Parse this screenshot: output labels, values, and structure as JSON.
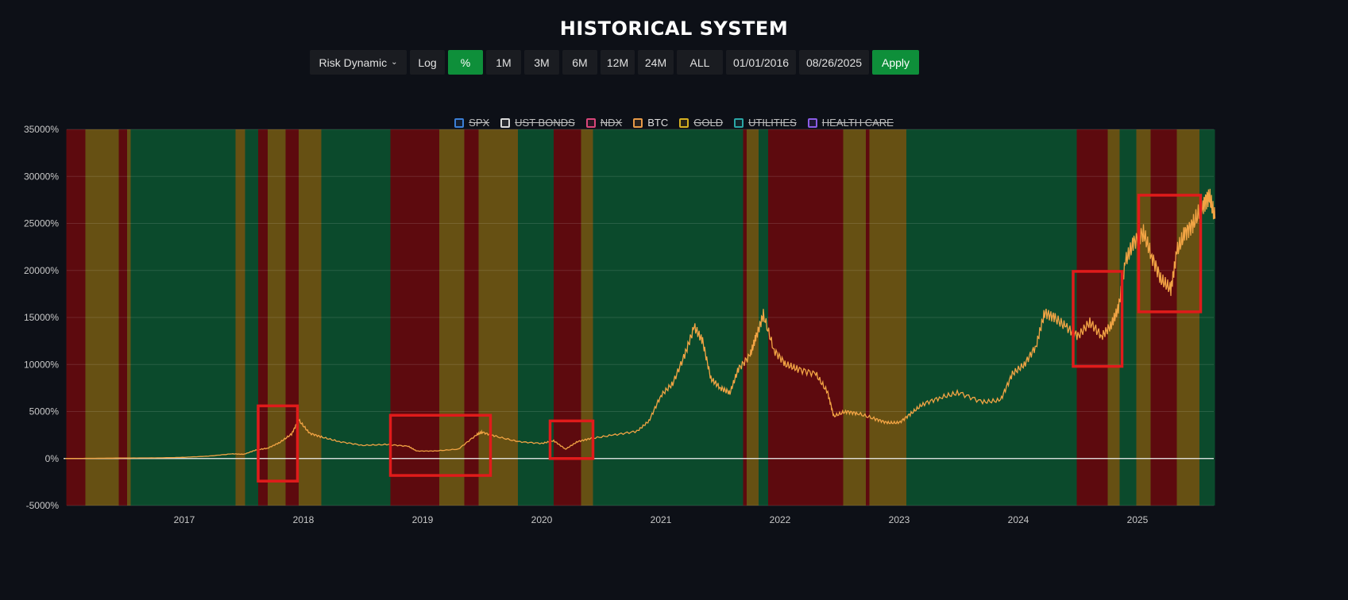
{
  "title": "HISTORICAL SYSTEM",
  "toolbar": {
    "dropdown": "Risk Dynamic",
    "buttons": [
      "Log",
      "%",
      "1M",
      "3M",
      "6M",
      "12M",
      "24M",
      "ALL"
    ],
    "active_button": "%",
    "start_date": "01/01/2016",
    "end_date": "08/26/2025",
    "apply": "Apply"
  },
  "colors": {
    "green": "#0b4a2c",
    "yellow": "#665013",
    "red": "#5d0a0e",
    "line": "#f2a444",
    "box": "#e01b1b"
  },
  "chart_data": {
    "type": "line",
    "title": "HISTORICAL SYSTEM",
    "xlabel": "",
    "ylabel": "",
    "x_range": [
      2016.0,
      2025.65
    ],
    "ylim": [
      -5000,
      35000
    ],
    "yticks": [
      -5000,
      0,
      5000,
      10000,
      15000,
      20000,
      25000,
      30000,
      35000
    ],
    "ytick_labels": [
      "-5000%",
      "0%",
      "5000%",
      "10000%",
      "15000%",
      "20000%",
      "25000%",
      "30000%",
      "35000%"
    ],
    "xticks": [
      2017,
      2018,
      2019,
      2020,
      2021,
      2022,
      2023,
      2024,
      2025
    ],
    "xtick_labels": [
      "2017",
      "2018",
      "2019",
      "2020",
      "2021",
      "2022",
      "2023",
      "2024",
      "2025"
    ],
    "grid": true,
    "legend_position": "top-center",
    "legend": [
      {
        "name": "SPX",
        "color": "#3b7fd6",
        "visible": false
      },
      {
        "name": "UST BONDS",
        "color": "#d8d8d8",
        "visible": false
      },
      {
        "name": "NDX",
        "color": "#d9467a",
        "visible": false
      },
      {
        "name": "BTC",
        "color": "#e89a48",
        "visible": true
      },
      {
        "name": "GOLD",
        "color": "#d6b021",
        "visible": false
      },
      {
        "name": "UTILITIES",
        "color": "#2aa6a6",
        "visible": false
      },
      {
        "name": "HEALTH CARE",
        "color": "#8a5ce6",
        "visible": false
      }
    ],
    "series": [
      {
        "name": "BTC",
        "x": [
          2016.0,
          2016.2,
          2016.5,
          2016.8,
          2017.0,
          2017.2,
          2017.4,
          2017.5,
          2017.6,
          2017.7,
          2017.8,
          2017.9,
          2017.96,
          2018.05,
          2018.15,
          2018.3,
          2018.5,
          2018.7,
          2018.88,
          2018.95,
          2019.1,
          2019.3,
          2019.45,
          2019.5,
          2019.6,
          2019.8,
          2020.0,
          2020.1,
          2020.2,
          2020.3,
          2020.4,
          2020.6,
          2020.8,
          2020.9,
          2021.0,
          2021.1,
          2021.2,
          2021.28,
          2021.35,
          2021.42,
          2021.5,
          2021.58,
          2021.65,
          2021.75,
          2021.8,
          2021.86,
          2021.95,
          2022.05,
          2022.15,
          2022.3,
          2022.4,
          2022.45,
          2022.55,
          2022.65,
          2022.8,
          2022.9,
          2023.0,
          2023.1,
          2023.2,
          2023.35,
          2023.5,
          2023.7,
          2023.85,
          2023.95,
          2024.05,
          2024.15,
          2024.22,
          2024.3,
          2024.4,
          2024.5,
          2024.6,
          2024.7,
          2024.78,
          2024.84,
          2024.9,
          2024.97,
          2025.05,
          2025.12,
          2025.2,
          2025.28,
          2025.33,
          2025.4,
          2025.47,
          2025.55,
          2025.6,
          2025.65
        ],
        "values": [
          0,
          20,
          55,
          70,
          130,
          250,
          500,
          450,
          900,
          1100,
          1700,
          2600,
          4100,
          2700,
          2300,
          1800,
          1400,
          1500,
          1300,
          800,
          800,
          1000,
          2500,
          2800,
          2400,
          1800,
          1600,
          1900,
          1000,
          1800,
          2100,
          2500,
          2900,
          4000,
          6700,
          8000,
          11000,
          14000,
          12500,
          8500,
          7500,
          7000,
          9500,
          11000,
          13000,
          15300,
          11500,
          10000,
          9500,
          9000,
          7000,
          4500,
          5000,
          4800,
          4200,
          3800,
          3800,
          4800,
          5800,
          6500,
          7000,
          6000,
          6200,
          9000,
          10000,
          12000,
          15500,
          15000,
          14000,
          13000,
          14500,
          13000,
          14200,
          16000,
          21000,
          23000,
          24000,
          21500,
          19000,
          18000,
          22000,
          24000,
          25000,
          27000,
          28000,
          25500
        ]
      }
    ],
    "regime_bands": [
      {
        "from": 2016.01,
        "to": 2016.17,
        "regime": "red"
      },
      {
        "from": 2016.17,
        "to": 2016.45,
        "regime": "yellow"
      },
      {
        "from": 2016.45,
        "to": 2016.52,
        "regime": "red"
      },
      {
        "from": 2016.52,
        "to": 2016.55,
        "regime": "yellow"
      },
      {
        "from": 2016.55,
        "to": 2017.43,
        "regime": "green"
      },
      {
        "from": 2017.43,
        "to": 2017.51,
        "regime": "yellow"
      },
      {
        "from": 2017.51,
        "to": 2017.62,
        "regime": "green"
      },
      {
        "from": 2017.62,
        "to": 2017.7,
        "regime": "red"
      },
      {
        "from": 2017.7,
        "to": 2017.85,
        "regime": "yellow"
      },
      {
        "from": 2017.85,
        "to": 2017.96,
        "regime": "red"
      },
      {
        "from": 2017.96,
        "to": 2018.15,
        "regime": "yellow"
      },
      {
        "from": 2018.15,
        "to": 2018.73,
        "regime": "green"
      },
      {
        "from": 2018.73,
        "to": 2019.14,
        "regime": "red"
      },
      {
        "from": 2019.14,
        "to": 2019.35,
        "regime": "yellow"
      },
      {
        "from": 2019.35,
        "to": 2019.47,
        "regime": "red"
      },
      {
        "from": 2019.47,
        "to": 2019.8,
        "regime": "yellow"
      },
      {
        "from": 2019.8,
        "to": 2020.1,
        "regime": "green"
      },
      {
        "from": 2020.1,
        "to": 2020.33,
        "regime": "red"
      },
      {
        "from": 2020.33,
        "to": 2020.43,
        "regime": "yellow"
      },
      {
        "from": 2020.43,
        "to": 2021.69,
        "regime": "green"
      },
      {
        "from": 2021.69,
        "to": 2021.72,
        "regime": "red"
      },
      {
        "from": 2021.72,
        "to": 2021.82,
        "regime": "yellow"
      },
      {
        "from": 2021.82,
        "to": 2021.9,
        "regime": "green"
      },
      {
        "from": 2021.9,
        "to": 2022.53,
        "regime": "red"
      },
      {
        "from": 2022.53,
        "to": 2022.72,
        "regime": "yellow"
      },
      {
        "from": 2022.72,
        "to": 2022.75,
        "regime": "red"
      },
      {
        "from": 2022.75,
        "to": 2023.06,
        "regime": "yellow"
      },
      {
        "from": 2023.06,
        "to": 2024.49,
        "regime": "green"
      },
      {
        "from": 2024.49,
        "to": 2024.75,
        "regime": "red"
      },
      {
        "from": 2024.75,
        "to": 2024.85,
        "regime": "yellow"
      },
      {
        "from": 2024.85,
        "to": 2024.99,
        "regime": "green"
      },
      {
        "from": 2024.99,
        "to": 2025.11,
        "regime": "yellow"
      },
      {
        "from": 2025.11,
        "to": 2025.33,
        "regime": "red"
      },
      {
        "from": 2025.33,
        "to": 2025.52,
        "regime": "yellow"
      },
      {
        "from": 2025.52,
        "to": 2025.65,
        "regime": "green"
      }
    ],
    "annotation_boxes": [
      {
        "x": [
          2017.62,
          2017.95
        ],
        "y": [
          -2400,
          5600
        ]
      },
      {
        "x": [
          2018.73,
          2019.57
        ],
        "y": [
          -1800,
          4600
        ]
      },
      {
        "x": [
          2020.07,
          2020.43
        ],
        "y": [
          0,
          4000
        ]
      },
      {
        "x": [
          2024.46,
          2024.87
        ],
        "y": [
          9800,
          19900
        ]
      },
      {
        "x": [
          2025.01,
          2025.53
        ],
        "y": [
          15600,
          28000
        ]
      }
    ]
  }
}
